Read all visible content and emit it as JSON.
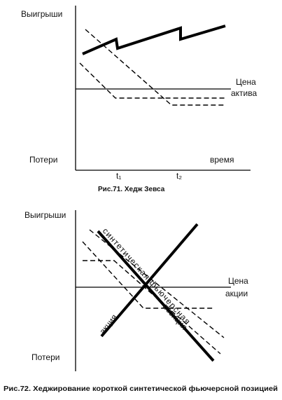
{
  "figures": [
    {
      "y_top_label": "Выигрыши",
      "y_bottom_label": "Потери",
      "line_label": [
        "Цена",
        "актива"
      ],
      "x_label": "время",
      "ticks": [
        "t₁",
        "t₂"
      ],
      "caption": "Рис.71. Хедж Зевса"
    },
    {
      "y_top_label": "Выигрыши",
      "y_bottom_label": "Потери",
      "line_label": [
        "Цена",
        "акции"
      ],
      "synthetic_label": [
        "синтетическая фьючерсная",
        "позиция"
      ],
      "stock_label": "акция",
      "caption": "Рис.72. Хеджирование короткой синтетической фьючерсной позицией"
    }
  ]
}
